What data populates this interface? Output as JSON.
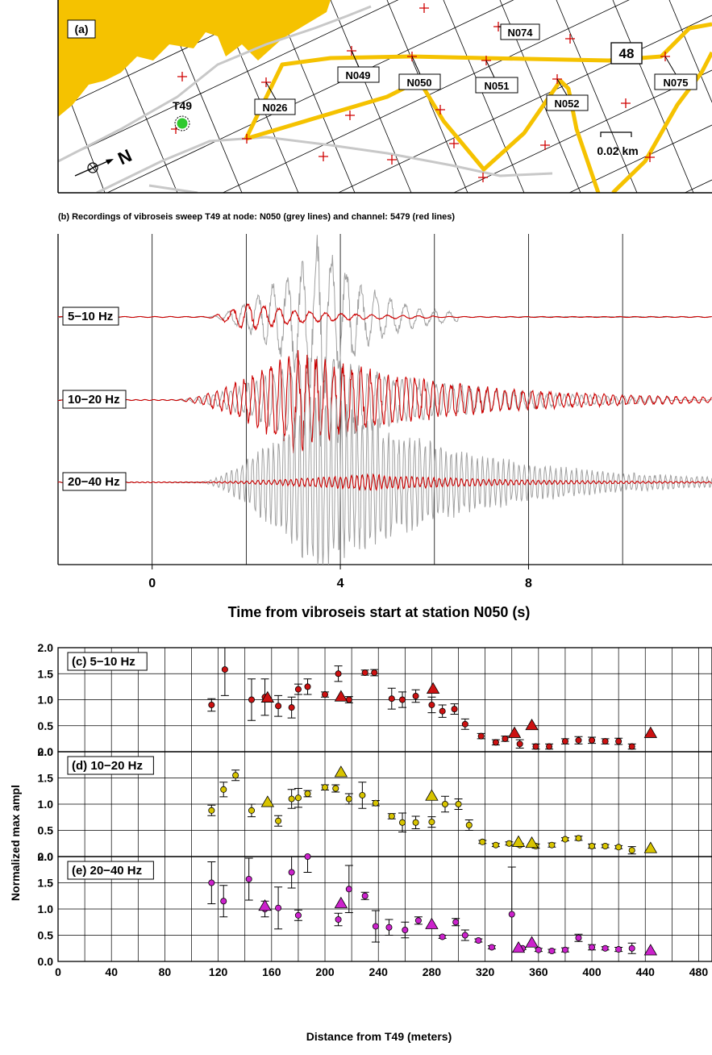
{
  "panel_a": {
    "label": "(a)",
    "source_label": "T49",
    "north_label": "N",
    "scale_label": "0.02 km",
    "line_number": "48",
    "nodes": [
      "N074",
      "N049",
      "N050",
      "N051",
      "N026",
      "N052",
      "N075"
    ]
  },
  "chart_data": [
    {
      "type": "line",
      "title": "(b) Recordings of vibroseis sweep T49 at node: N050 (grey lines) and channel: 5479 (red lines)",
      "xlabel": "Time from vibroseis start at station N050 (s)",
      "ylabel": "",
      "xlim": [
        -2.0,
        11.9
      ],
      "x_ticks": [
        0,
        4,
        8
      ],
      "grid": true,
      "series": [
        {
          "name": "N050",
          "color": "#a0a0a0"
        },
        {
          "name": "5479",
          "color": "#cc0000"
        }
      ],
      "traces": [
        {
          "label": "5-10 Hz",
          "node_grey": {
            "onset": 1.2,
            "peak_time": 3.6,
            "peak_amp": 2.6,
            "end": 6.5
          },
          "channel_red": {
            "onset": 1.1,
            "peak_time": 2.0,
            "peak_amp": 0.45,
            "end": 6.0
          }
        },
        {
          "label": "10-20 Hz",
          "node_grey": {
            "onset": 0.5,
            "peak_time": 3.5,
            "peak_amp": 1.5,
            "end": 11.0
          },
          "channel_red": {
            "onset": 0.5,
            "peak_time": 3.0,
            "peak_amp": 1.6,
            "end": 11.9
          }
        },
        {
          "label": "20-40 Hz",
          "node_grey": {
            "onset": 1.0,
            "peak_time": 3.5,
            "peak_amp": 3.0,
            "end": 11.9
          },
          "channel_red": {
            "onset": 1.0,
            "peak_time": 4.6,
            "peak_amp": 0.25,
            "end": 11.9
          }
        }
      ]
    },
    {
      "type": "scatter",
      "title": "(c) 5-10 Hz",
      "xlabel": "",
      "ylabel": "Normalized max ampl",
      "xlim": [
        0,
        490
      ],
      "ylim": [
        0,
        2.0
      ],
      "grid": true,
      "marker_color": "#cc1111",
      "circles": [
        [
          115,
          0.9,
          0.12
        ],
        [
          125,
          1.58,
          0.5
        ],
        [
          145,
          1.0,
          0.4
        ],
        [
          155,
          1.05,
          0.35
        ],
        [
          165,
          0.88,
          0.2
        ],
        [
          175,
          0.85,
          0.2
        ],
        [
          180,
          1.2,
          0.1
        ],
        [
          187,
          1.25,
          0.15
        ],
        [
          200,
          1.1,
          0.05
        ],
        [
          210,
          1.5,
          0.15
        ],
        [
          218,
          1.0,
          0.06
        ],
        [
          230,
          1.52,
          0.05
        ],
        [
          237,
          1.52,
          0.06
        ],
        [
          250,
          1.02,
          0.2
        ],
        [
          258,
          1.0,
          0.15
        ],
        [
          268,
          1.07,
          0.12
        ],
        [
          280,
          0.9,
          0.15
        ],
        [
          288,
          0.78,
          0.12
        ],
        [
          297,
          0.82,
          0.1
        ],
        [
          305,
          0.53,
          0.1
        ],
        [
          317,
          0.3,
          0.05
        ],
        [
          328,
          0.18,
          0.05
        ],
        [
          335,
          0.25,
          0.05
        ],
        [
          346,
          0.15,
          0.08
        ],
        [
          358,
          0.1,
          0.05
        ],
        [
          368,
          0.1,
          0.05
        ],
        [
          380,
          0.2,
          0.05
        ],
        [
          390,
          0.22,
          0.07
        ],
        [
          400,
          0.22,
          0.06
        ],
        [
          410,
          0.2,
          0.05
        ],
        [
          420,
          0.2,
          0.06
        ],
        [
          430,
          0.1,
          0.05
        ]
      ],
      "triangles": [
        [
          157,
          1.03
        ],
        [
          212,
          1.05
        ],
        [
          281,
          1.2
        ],
        [
          342,
          0.35
        ],
        [
          355,
          0.5
        ],
        [
          444,
          0.35
        ]
      ]
    },
    {
      "type": "scatter",
      "title": "(d) 10-20 Hz",
      "xlabel": "",
      "ylabel": "Normalized max ampl",
      "xlim": [
        0,
        490
      ],
      "ylim": [
        0,
        2.0
      ],
      "grid": true,
      "marker_color": "#d8c400",
      "circles": [
        [
          115,
          0.88,
          0.1
        ],
        [
          124,
          1.28,
          0.14
        ],
        [
          133,
          1.55,
          0.1
        ],
        [
          145,
          0.88,
          0.12
        ],
        [
          165,
          0.68,
          0.1
        ],
        [
          175,
          1.1,
          0.18
        ],
        [
          180,
          1.12,
          0.18
        ],
        [
          187,
          1.2,
          0.06
        ],
        [
          200,
          1.32,
          0.05
        ],
        [
          208,
          1.3,
          0.07
        ],
        [
          218,
          1.1,
          0.1
        ],
        [
          228,
          1.17,
          0.25
        ],
        [
          238,
          1.02,
          0.05
        ],
        [
          250,
          0.77,
          0.05
        ],
        [
          258,
          0.65,
          0.18
        ],
        [
          268,
          0.65,
          0.12
        ],
        [
          280,
          0.66,
          0.1
        ],
        [
          290,
          1.0,
          0.15
        ],
        [
          300,
          1.0,
          0.1
        ],
        [
          308,
          0.6,
          0.1
        ],
        [
          318,
          0.28,
          0.03
        ],
        [
          328,
          0.22,
          0.03
        ],
        [
          338,
          0.25,
          0.03
        ],
        [
          346,
          0.22,
          0.03
        ],
        [
          358,
          0.2,
          0.04
        ],
        [
          370,
          0.22,
          0.04
        ],
        [
          380,
          0.33,
          0.03
        ],
        [
          390,
          0.35,
          0.04
        ],
        [
          400,
          0.2,
          0.04
        ],
        [
          410,
          0.2,
          0.03
        ],
        [
          420,
          0.18,
          0.03
        ],
        [
          430,
          0.12,
          0.07
        ]
      ],
      "triangles": [
        [
          157,
          1.03
        ],
        [
          212,
          1.6
        ],
        [
          280,
          1.15
        ],
        [
          345,
          0.27
        ],
        [
          355,
          0.25
        ],
        [
          444,
          0.15
        ]
      ]
    },
    {
      "type": "scatter",
      "title": "(e) 20-40 Hz",
      "xlabel": "Distance from T49 (meters)",
      "ylabel": "Normalized max ampl",
      "xlim": [
        0,
        490
      ],
      "ylim": [
        0,
        2.0
      ],
      "grid": true,
      "marker_color": "#cc22cc",
      "x_ticks": [
        0,
        40,
        80,
        120,
        160,
        200,
        240,
        280,
        320,
        360,
        400,
        440,
        480
      ],
      "circles": [
        [
          115,
          1.5,
          0.4
        ],
        [
          124,
          1.15,
          0.3
        ],
        [
          143,
          1.57,
          0.4
        ],
        [
          155,
          1.0,
          0.15
        ],
        [
          165,
          1.02,
          0.4
        ],
        [
          175,
          1.7,
          0.3
        ],
        [
          180,
          0.88,
          0.1
        ],
        [
          187,
          2.0,
          0.3
        ],
        [
          210,
          0.8,
          0.12
        ],
        [
          218,
          1.38,
          0.45
        ],
        [
          230,
          1.25,
          0.07
        ],
        [
          238,
          0.67,
          0.3
        ],
        [
          248,
          0.65,
          0.15
        ],
        [
          260,
          0.6,
          0.15
        ],
        [
          270,
          0.78,
          0.07
        ],
        [
          288,
          0.47,
          0.03
        ],
        [
          298,
          0.75,
          0.07
        ],
        [
          305,
          0.5,
          0.1
        ],
        [
          315,
          0.4,
          0.03
        ],
        [
          325,
          0.27,
          0.03
        ],
        [
          340,
          0.9,
          0.9
        ],
        [
          348,
          0.25,
          0.02
        ],
        [
          360,
          0.22,
          0.03
        ],
        [
          370,
          0.2,
          0.03
        ],
        [
          380,
          0.22,
          0.04
        ],
        [
          390,
          0.45,
          0.07
        ],
        [
          400,
          0.27,
          0.05
        ],
        [
          410,
          0.25,
          0.03
        ],
        [
          420,
          0.23,
          0.04
        ],
        [
          430,
          0.25,
          0.1
        ]
      ],
      "triangles": [
        [
          155,
          1.05
        ],
        [
          212,
          1.1
        ],
        [
          280,
          0.7
        ],
        [
          345,
          0.25
        ],
        [
          355,
          0.35
        ],
        [
          444,
          0.2
        ]
      ]
    }
  ]
}
